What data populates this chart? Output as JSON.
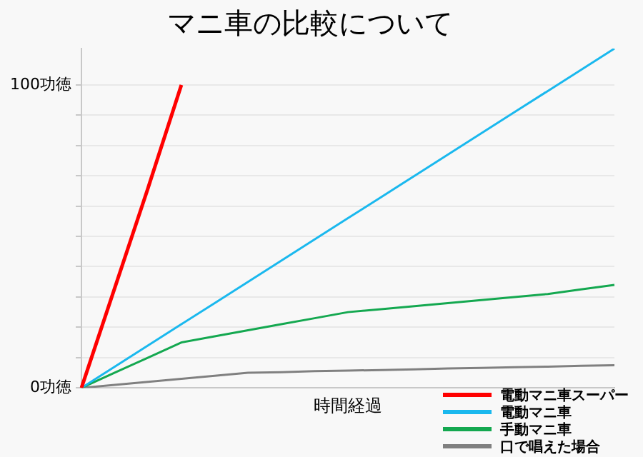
{
  "chart_data": {
    "type": "line",
    "title": "マニ車の比較について",
    "xlabel": "時間経過",
    "categories": [
      null,
      null,
      null,
      null,
      null,
      null,
      null,
      null,
      null,
      null,
      null,
      null,
      null,
      null,
      null,
      null,
      null
    ],
    "series": [
      {
        "name": "電動マニ車スーパー",
        "color": "#ff0000",
        "values": [
          0,
          33,
          66,
          100,
          null,
          null,
          null,
          null,
          null,
          null,
          null,
          null,
          null,
          null,
          null,
          null,
          null
        ]
      },
      {
        "name": "電動マニ車",
        "color": "#1ab8ee",
        "values": [
          0,
          7,
          14,
          21,
          28,
          35,
          42,
          49,
          56,
          63,
          70,
          77,
          84,
          91,
          98,
          105,
          112
        ]
      },
      {
        "name": "手動マニ車",
        "color": "#14a850",
        "values": [
          0,
          5,
          10,
          15,
          17,
          19,
          21,
          23,
          25,
          26,
          27,
          28,
          29,
          30,
          31,
          32.5,
          34
        ]
      },
      {
        "name": "口で唱えた場合",
        "color": "#808080",
        "values": [
          0,
          1,
          2,
          3,
          4,
          5,
          5.2,
          5.5,
          5.7,
          5.9,
          6.1,
          6.4,
          6.6,
          6.8,
          7,
          7.3,
          7.5
        ]
      }
    ],
    "ylim": [
      0,
      112
    ],
    "yticks": [
      {
        "value": 0,
        "label": "0功徳"
      },
      {
        "value": 10,
        "label": null
      },
      {
        "value": 20,
        "label": null
      },
      {
        "value": 30,
        "label": null
      },
      {
        "value": 40,
        "label": null
      },
      {
        "value": 50,
        "label": null
      },
      {
        "value": 60,
        "label": null
      },
      {
        "value": 70,
        "label": null
      },
      {
        "value": 80,
        "label": null
      },
      {
        "value": 90,
        "label": null
      },
      {
        "value": 100,
        "label": "100功徳"
      }
    ],
    "tick_labels": "y",
    "grid": "y",
    "legend": "bottom right",
    "marker": "none",
    "line_style": "solid"
  }
}
